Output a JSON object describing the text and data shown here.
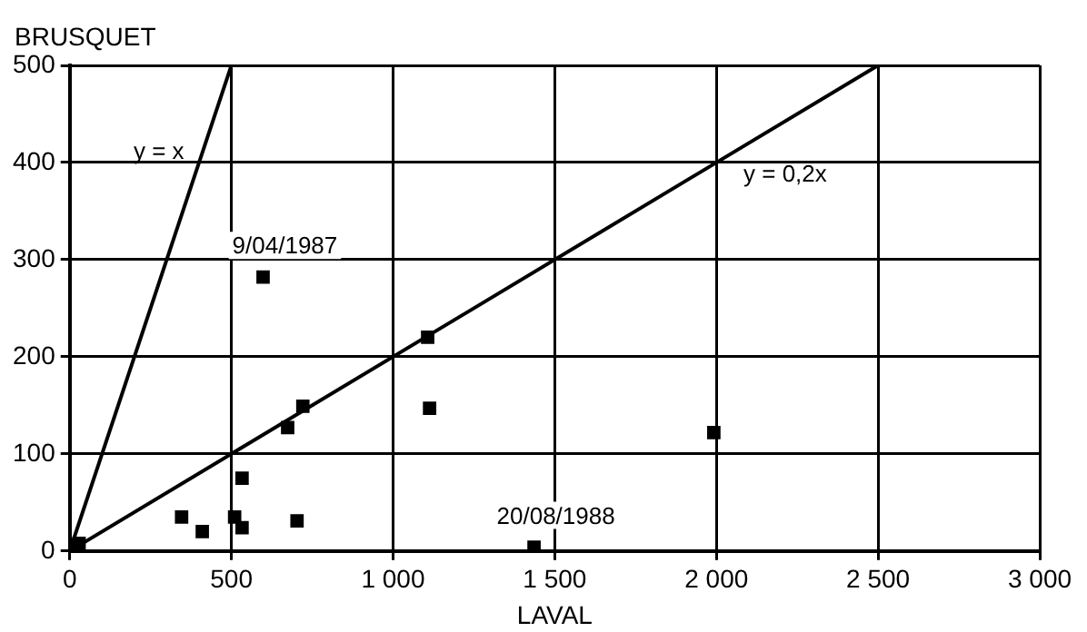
{
  "chart_data": {
    "type": "scatter",
    "xlabel": "LAVAL",
    "ylabel": "BRUSQUET",
    "xlim": [
      0,
      3000
    ],
    "xticks": [
      0,
      500,
      {
        "value": 1000,
        "label": "1 000"
      },
      {
        "value": 1500,
        "label": "1 500"
      },
      {
        "value": 2000,
        "label": "2 000"
      },
      {
        "value": 2500,
        "label": "2 500"
      },
      {
        "value": 3000,
        "label": "3 000"
      }
    ],
    "ylim": [
      0,
      500
    ],
    "yticks": [
      0,
      100,
      200,
      300,
      400,
      500
    ],
    "grid": true,
    "legend": false,
    "marker": "square",
    "series": [
      {
        "color": "#000000",
        "x": [
          29,
          346,
          410,
          510,
          533,
          533,
          598,
          674,
          703,
          721,
          1107,
          1113,
          1436,
          1992
        ],
        "values": [
          8,
          35,
          20,
          35,
          24,
          75,
          282,
          127,
          31,
          149,
          220,
          147,
          4,
          122
        ]
      },
      {
        "type": "line",
        "name": "y = x",
        "color": "#000000",
        "x": [
          0,
          500
        ],
        "values": [
          0,
          500
        ],
        "marker": "none"
      },
      {
        "type": "line",
        "name": "y = 0,2x",
        "color": "#000000",
        "x": [
          0,
          2500
        ],
        "values": [
          0,
          500
        ],
        "marker": "none"
      }
    ],
    "annotations": [
      {
        "text": "9/04/1987",
        "x": 598,
        "y": 282
      },
      {
        "text": "20/08/1988",
        "x": 1436,
        "y": 4
      }
    ]
  }
}
